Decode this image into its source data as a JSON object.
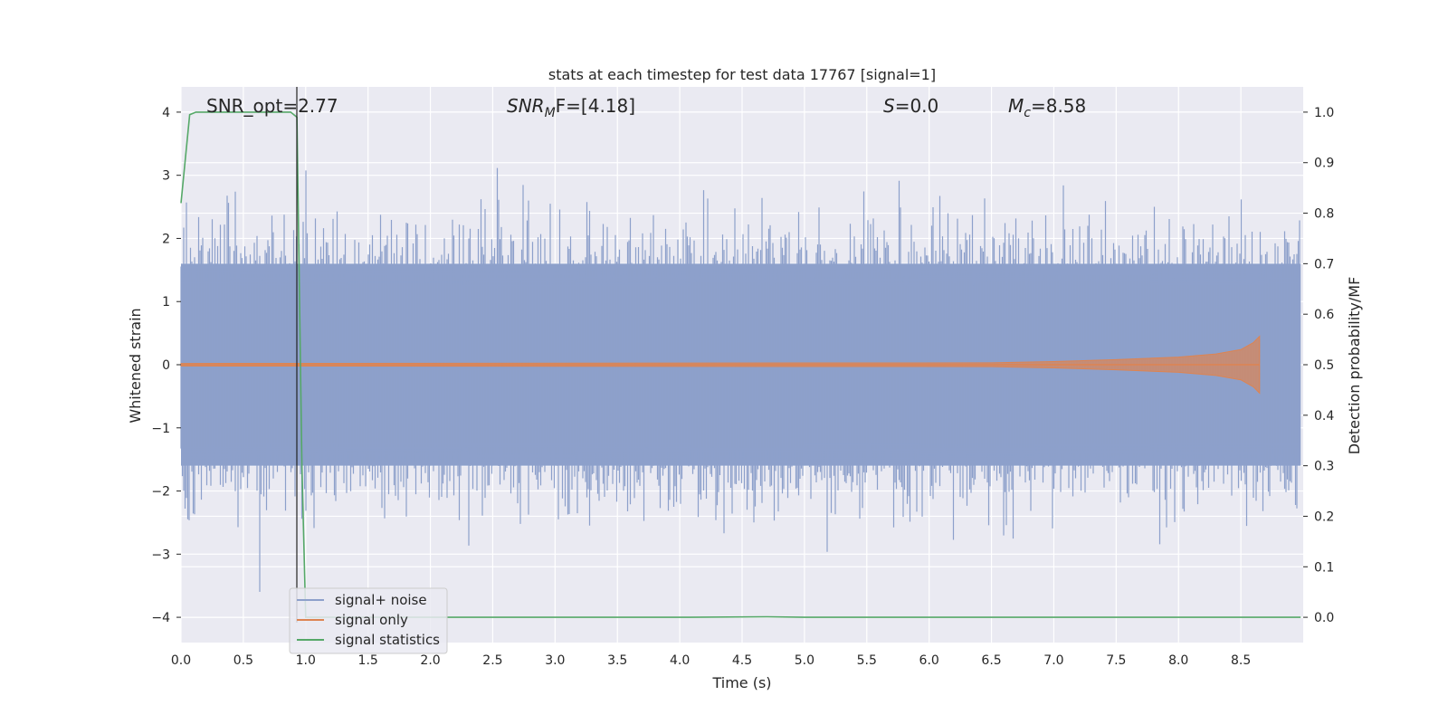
{
  "chart_data": {
    "type": "line",
    "title": "stats at each timestep for test data 17767 [signal=1]",
    "xlabel": "Time (s)",
    "ylabel": "Whitened strain",
    "y2label": "Detection probability/MF",
    "xlim": [
      0.0,
      9.0
    ],
    "ylim": [
      -4.4,
      4.4
    ],
    "y2lim": [
      -0.05,
      1.05
    ],
    "xticks": [
      "0.0",
      "0.5",
      "1.0",
      "1.5",
      "2.0",
      "2.5",
      "3.0",
      "3.5",
      "4.0",
      "4.5",
      "5.0",
      "5.5",
      "6.0",
      "6.5",
      "7.0",
      "7.5",
      "8.0",
      "8.5"
    ],
    "yticks": [
      "4",
      "3",
      "2",
      "1",
      "0",
      "−1",
      "−2",
      "−3",
      "−4"
    ],
    "y2ticks": [
      "1.0",
      "0.9",
      "0.8",
      "0.7",
      "0.6",
      "0.5",
      "0.4",
      "0.3",
      "0.2",
      "0.1",
      "0.0"
    ],
    "grid": true,
    "legend_position": "lower-left",
    "annotations": {
      "snr_opt": "SNR_opt=2.77",
      "snr_mf_base": "SNR",
      "snr_mf_sub": "M",
      "snr_mf_rest": "F=[4.18]",
      "s_label": "S",
      "s_rest": "=0.0",
      "mc_base": "M",
      "mc_sub": "c",
      "mc_rest": "=8.58"
    },
    "series": [
      {
        "name": "signal+ noise",
        "color": "#8da0cb",
        "description_values": "whitened noise, approx amplitude band ±1.6 with peaks to ±4 over 0–9 s",
        "envelope_upper_typical": 1.6,
        "envelope_lower_typical": -1.6
      },
      {
        "name": "signal only",
        "color": "#dd8452",
        "x": [
          0.0,
          6.5,
          7.0,
          7.5,
          8.0,
          8.3,
          8.5,
          8.6,
          8.65
        ],
        "amplitude": [
          0.02,
          0.03,
          0.05,
          0.08,
          0.12,
          0.17,
          0.24,
          0.35,
          0.45
        ]
      },
      {
        "name": "signal statistics",
        "color": "#55a868",
        "x": [
          0.0,
          0.07,
          0.12,
          0.5,
          0.88,
          0.93,
          0.97,
          1.0,
          1.2,
          2.0,
          4.0,
          4.7,
          5.0,
          6.0,
          8.0,
          8.98
        ],
        "y": [
          0.82,
          0.995,
          1.0,
          1.0,
          1.0,
          0.99,
          0.3,
          0.0,
          0.0,
          0.0,
          0.0,
          0.001,
          0.0,
          0.0,
          0.0,
          0.0
        ]
      }
    ]
  }
}
